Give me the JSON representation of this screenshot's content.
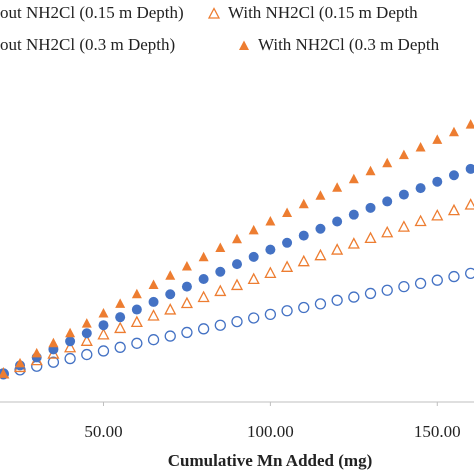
{
  "chart_data": {
    "type": "scatter",
    "x_label": "Cumulative Mn Added (mg)",
    "x": [
      20,
      25,
      30,
      35,
      40,
      45,
      50,
      55,
      60,
      65,
      70,
      75,
      80,
      85,
      90,
      95,
      100,
      105,
      110,
      115,
      120,
      125,
      130,
      135,
      140,
      145,
      150,
      155,
      160
    ],
    "series": [
      {
        "name": "out NH2Cl (0.15 m Depth)",
        "color": "#4472c4",
        "marker": "circle-open",
        "values": [
          7.0,
          8.0,
          8.9,
          9.9,
          10.8,
          11.8,
          12.7,
          13.6,
          14.6,
          15.5,
          16.4,
          17.3,
          18.2,
          19.1,
          20.0,
          20.9,
          21.8,
          22.7,
          23.5,
          24.4,
          25.3,
          26.1,
          27.0,
          27.8,
          28.7,
          29.5,
          30.3,
          31.2,
          32.0
        ]
      },
      {
        "name": "With NH2Cl (0.15 m Depth",
        "color": "#ed7d31",
        "marker": "triangle-open",
        "values": [
          7.0,
          8.6,
          10.3,
          11.9,
          13.5,
          15.1,
          16.7,
          18.3,
          19.8,
          21.4,
          22.9,
          24.5,
          26.0,
          27.5,
          29.0,
          30.5,
          32.0,
          33.5,
          34.9,
          36.4,
          37.8,
          39.3,
          40.7,
          42.1,
          43.5,
          44.9,
          46.3,
          47.6,
          49.0
        ]
      },
      {
        "name": "out NH2Cl (0.3 m Depth)",
        "color": "#4472c4",
        "marker": "circle",
        "values": [
          7.0,
          9.1,
          11.1,
          13.1,
          15.1,
          17.1,
          19.1,
          21.1,
          23.0,
          24.9,
          26.8,
          28.7,
          30.6,
          32.4,
          34.3,
          36.1,
          37.9,
          39.6,
          41.4,
          43.1,
          44.9,
          46.6,
          48.3,
          49.9,
          51.6,
          53.2,
          54.8,
          56.4,
          58.0
        ]
      },
      {
        "name": "With NH2Cl (0.3 m Depth",
        "color": "#ed7d31",
        "marker": "triangle",
        "values": [
          7.0,
          9.6,
          12.1,
          14.6,
          17.1,
          19.5,
          22.0,
          24.4,
          26.8,
          29.1,
          31.4,
          33.7,
          36.0,
          38.3,
          40.5,
          42.7,
          44.9,
          47.0,
          49.2,
          51.3,
          53.3,
          55.4,
          57.4,
          59.4,
          61.4,
          63.3,
          65.2,
          67.1,
          69.0
        ]
      }
    ],
    "xlim": [
      19,
      161
    ],
    "xticks": [
      {
        "value": 50,
        "label": "50.00"
      },
      {
        "value": 100,
        "label": "100.00"
      },
      {
        "value": 150,
        "label": "150.00"
      }
    ],
    "ylim": [
      0,
      100
    ]
  }
}
